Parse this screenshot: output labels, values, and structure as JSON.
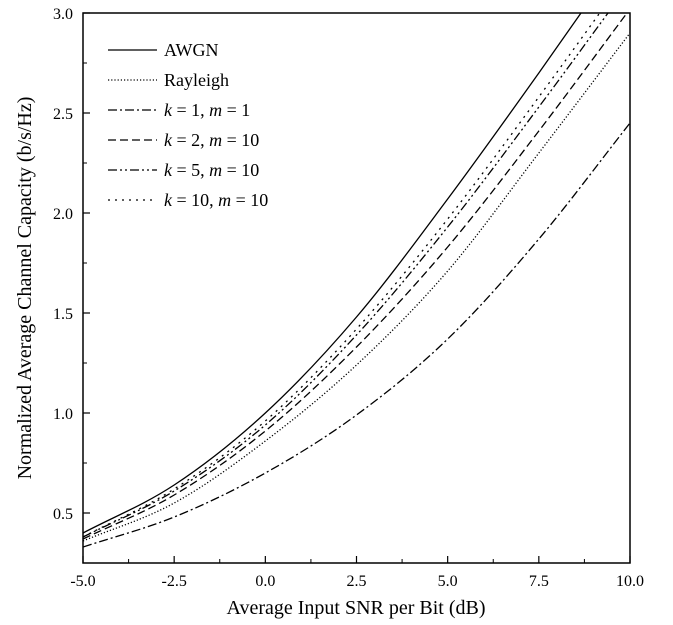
{
  "chart_data": {
    "type": "line",
    "xlabel": "Average Input SNR per Bit (dB)",
    "ylabel": "Normalized Average Channel Capacity (b/s/Hz)",
    "xlim": [
      -5.0,
      10.0
    ],
    "ylim": [
      0.25,
      3.0
    ],
    "x_ticks": [
      -5.0,
      -2.5,
      0.0,
      2.5,
      5.0,
      7.5,
      10.0
    ],
    "x_tick_labels": [
      "-5.0",
      "-2.5",
      "0.0",
      "2.5",
      "5.0",
      "7.5",
      "10.0"
    ],
    "y_ticks": [
      0.5,
      1.0,
      1.5,
      2.0,
      2.5,
      3.0
    ],
    "y_tick_labels": [
      "0.5",
      "1.0",
      "1.5",
      "2.0",
      "2.5",
      "3.0"
    ],
    "grid": false,
    "legend_position": "top-left",
    "x": [
      -5.0,
      -2.5,
      0.0,
      2.5,
      5.0,
      7.5,
      10.0
    ],
    "series": [
      {
        "name": "AWGN",
        "dash": "solid",
        "values": [
          0.4,
          0.64,
          1.0,
          1.48,
          2.07,
          2.7,
          3.35
        ]
      },
      {
        "name": "Rayleigh",
        "dash": "dotted",
        "values": [
          0.36,
          0.55,
          0.86,
          1.24,
          1.71,
          2.3,
          2.9
        ]
      },
      {
        "name": "k = 1, m = 1",
        "dash": "dashdot",
        "values": [
          0.33,
          0.48,
          0.7,
          0.99,
          1.37,
          1.87,
          2.45
        ]
      },
      {
        "name": "k = 2, m = 10",
        "dash": "dashed",
        "values": [
          0.37,
          0.59,
          0.91,
          1.33,
          1.83,
          2.41,
          3.02
        ]
      },
      {
        "name": "k = 5, m = 10",
        "dash": "dashdotdot",
        "values": [
          0.38,
          0.61,
          0.94,
          1.39,
          1.93,
          2.53,
          3.15
        ]
      },
      {
        "name": "k = 10, m = 10",
        "dash": "shortdot",
        "values": [
          0.38,
          0.62,
          0.96,
          1.42,
          1.97,
          2.58,
          3.21
        ]
      }
    ]
  },
  "legend": [
    {
      "parts": [
        {
          "t": "AWGN",
          "i": false
        }
      ]
    },
    {
      "parts": [
        {
          "t": "Rayleigh",
          "i": false
        }
      ]
    },
    {
      "parts": [
        {
          "t": "k",
          "i": true
        },
        {
          "t": " = 1, ",
          "i": false
        },
        {
          "t": "m",
          "i": true
        },
        {
          "t": " = 1",
          "i": false
        }
      ]
    },
    {
      "parts": [
        {
          "t": "k",
          "i": true
        },
        {
          "t": " = 2, ",
          "i": false
        },
        {
          "t": "m",
          "i": true
        },
        {
          "t": " = 10",
          "i": false
        }
      ]
    },
    {
      "parts": [
        {
          "t": "k",
          "i": true
        },
        {
          "t": " = 5, ",
          "i": false
        },
        {
          "t": "m",
          "i": true
        },
        {
          "t": " = 10",
          "i": false
        }
      ]
    },
    {
      "parts": [
        {
          "t": "k",
          "i": true
        },
        {
          "t": " = 10, ",
          "i": false
        },
        {
          "t": "m",
          "i": true
        },
        {
          "t": " = 10",
          "i": false
        }
      ]
    }
  ]
}
